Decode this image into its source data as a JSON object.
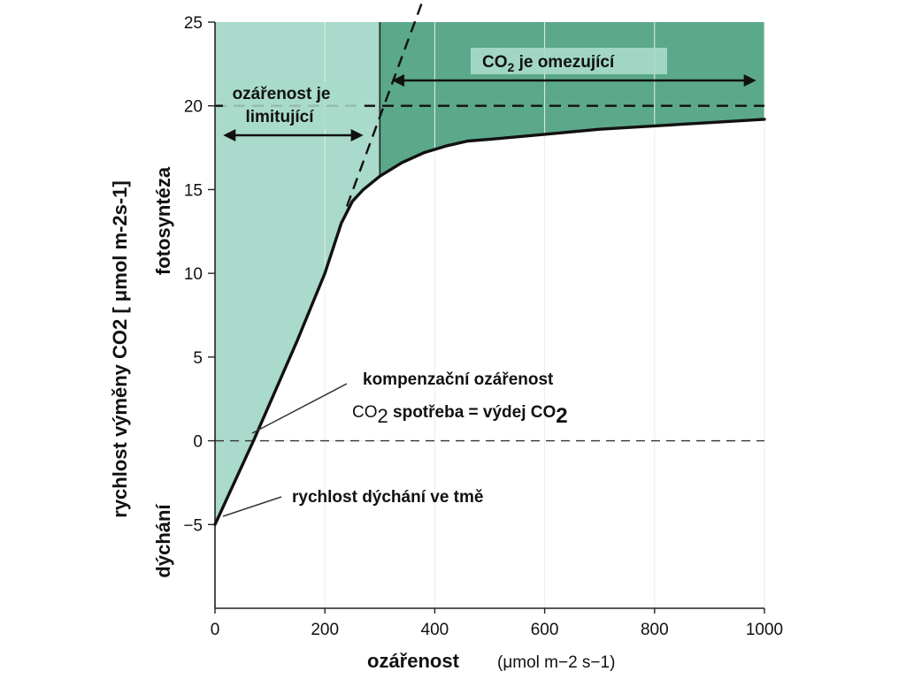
{
  "chart_data": {
    "type": "line",
    "xlabel": "ozářenost",
    "xunit": "(μmol m−2 s−1)",
    "ylabel_main": "rychlost výměny CO2 [ μmol m-2s-1]",
    "ylabel_upper": "fotosyntéza",
    "ylabel_lower": "dýchání",
    "xlim": [
      0,
      1000
    ],
    "ylim": [
      -10,
      25
    ],
    "x_ticks": [
      0,
      200,
      400,
      600,
      800,
      1000
    ],
    "y_ticks": [
      -5,
      0,
      5,
      10,
      15,
      20,
      25
    ],
    "x_tick_labels": [
      "0",
      "200",
      "400",
      "600",
      "800",
      "1000"
    ],
    "y_tick_labels": [
      "−5",
      "0",
      "5",
      "10",
      "15",
      "20",
      "25"
    ],
    "series": [
      {
        "x": [
          0,
          70,
          150,
          200,
          230,
          250,
          270,
          300,
          340,
          380,
          420,
          460,
          500,
          600,
          700,
          800,
          900,
          1000
        ],
        "y": [
          -5,
          0,
          6,
          10,
          13,
          14.3,
          15,
          15.8,
          16.6,
          17.2,
          17.6,
          17.9,
          18.0,
          18.3,
          18.6,
          18.8,
          19.0,
          19.2
        ]
      }
    ],
    "extrapolation": {
      "x": [
        70,
        380
      ],
      "y": [
        0,
        25.3
      ]
    },
    "saturation_level": 20,
    "regions": {
      "light_limited": [
        0,
        300
      ],
      "co2_limited": [
        300,
        1000
      ]
    },
    "annotations": {
      "light_limit_line1": "ozářenost je",
      "light_limit_line2": "limitující",
      "co2_limit_main": "CO",
      "co2_limit_sub": "2",
      "co2_limit_rest": " je omezující",
      "compensation_line1": "kompenzační ozářenost",
      "compensation_co2a": "CO",
      "compensation_sub_a": "2",
      "compensation_mid": " spotřeba = výdej CO",
      "compensation_sub_b": "2",
      "dark_respiration": "rychlost dýchání ve tmě"
    },
    "colors": {
      "light_region": "#a9dacb",
      "co2_region": "#5ba88a",
      "curve": "#111111"
    }
  }
}
